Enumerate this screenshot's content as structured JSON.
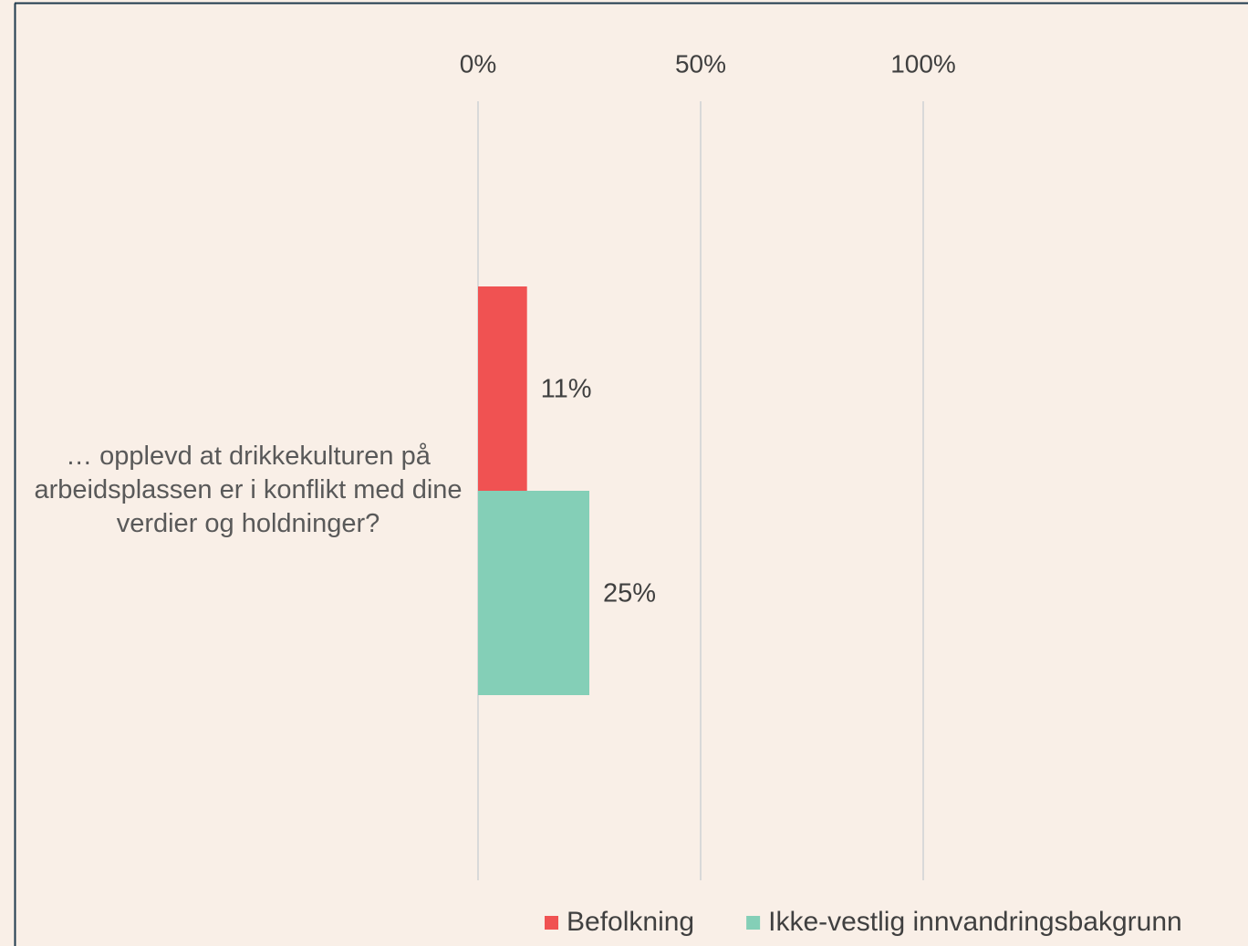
{
  "chart_data": {
    "type": "barh",
    "categories": [
      "… opplevd at drikkekulturen på arbeidsplassen er i konflikt med dine verdier og holdninger?"
    ],
    "series": [
      {
        "name": "Befolkning",
        "color": "#f05252",
        "values": [
          11
        ],
        "value_labels": [
          "11%"
        ]
      },
      {
        "name": "Ikke-vestlig innvandringsbakgrunn",
        "color": "#84cfb7",
        "values": [
          25
        ],
        "value_labels": [
          "25%"
        ]
      }
    ],
    "xlim": [
      0,
      100
    ],
    "xticks": [
      {
        "value": 0,
        "label": "0%"
      },
      {
        "value": 50,
        "label": "50%"
      },
      {
        "value": 100,
        "label": "100%"
      }
    ],
    "grid": true,
    "legend": "bottom"
  }
}
